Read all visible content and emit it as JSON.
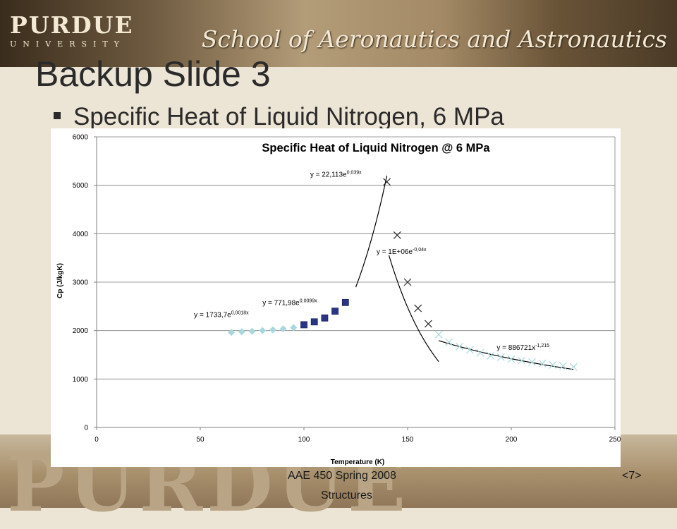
{
  "header": {
    "logo_main": "PURDUE",
    "logo_sub": "UNIVERSITY",
    "school": "School of Aeronautics and Astronautics"
  },
  "slide": {
    "title": "Backup Slide 3",
    "bullet": "Specific Heat of Liquid Nitrogen, 6 MPa"
  },
  "footer": {
    "course": "AAE 450 Spring 2008",
    "page": "<7>",
    "dept": "Structures"
  },
  "colors": {
    "squares": "#2b3585",
    "diamonds": "#a8d8dc",
    "crosses": "#2a2a2a",
    "light_crosses": "#a8d8dc",
    "trendline": "#000000"
  },
  "chart_data": {
    "type": "scatter",
    "title": "Specific Heat of Liquid Nitrogen @ 6 MPa",
    "xlabel": "Temperature (K)",
    "ylabel": "Cp (J/kgK)",
    "xlim": [
      0,
      250
    ],
    "ylim": [
      0,
      6000
    ],
    "xticks": [
      0,
      50,
      100,
      150,
      200,
      250
    ],
    "yticks": [
      0,
      1000,
      2000,
      3000,
      4000,
      5000,
      6000
    ],
    "grid": "horizontal",
    "series": [
      {
        "marker": "diamond",
        "color": "#a8d8dc",
        "x": [
          65,
          70,
          75,
          80,
          85,
          90,
          95
        ],
        "y": [
          1960,
          1975,
          1985,
          2000,
          2015,
          2035,
          2060
        ]
      },
      {
        "marker": "square",
        "color": "#2b3585",
        "x": [
          100,
          105,
          110,
          115,
          120
        ],
        "y": [
          2120,
          2180,
          2260,
          2400,
          2580
        ]
      },
      {
        "marker": "cross",
        "color": "#2a2a2a",
        "x": [
          140,
          145,
          150,
          155,
          160
        ],
        "y": [
          5070,
          3970,
          3000,
          2460,
          2140
        ]
      },
      {
        "marker": "cross",
        "color": "#a8d8dc",
        "x": [
          165,
          170,
          175,
          180,
          185,
          190,
          195,
          200,
          205,
          210,
          215,
          220,
          225,
          230
        ],
        "y": [
          1920,
          1760,
          1670,
          1600,
          1540,
          1480,
          1450,
          1410,
          1380,
          1350,
          1320,
          1290,
          1270,
          1250
        ]
      }
    ],
    "trendlines": [
      {
        "type": "exp",
        "a": 22.113,
        "b": 0.039,
        "x0": 125,
        "x1": 140
      },
      {
        "type": "exp",
        "a": 1000000,
        "b": -0.04,
        "x0": 141,
        "x1": 165
      },
      {
        "type": "power",
        "a": 886721,
        "b": -1.215,
        "x0": 165,
        "x1": 230
      }
    ],
    "annotations": [
      {
        "base": "y = 22,113e",
        "sup": "0,039x",
        "x": 103,
        "y": 5180
      },
      {
        "base": "y = 1E+06e",
        "sup": "-0,04x",
        "x": 135,
        "y": 3580
      },
      {
        "base": "y = 771,98e",
        "sup": "0,0099x",
        "x": 80,
        "y": 2530
      },
      {
        "base": "y = 1733,7e",
        "sup": "0,0018x",
        "x": 47,
        "y": 2280
      },
      {
        "base": "y = 886721x",
        "sup": "-1,215",
        "x": 193,
        "y": 1600
      }
    ]
  }
}
